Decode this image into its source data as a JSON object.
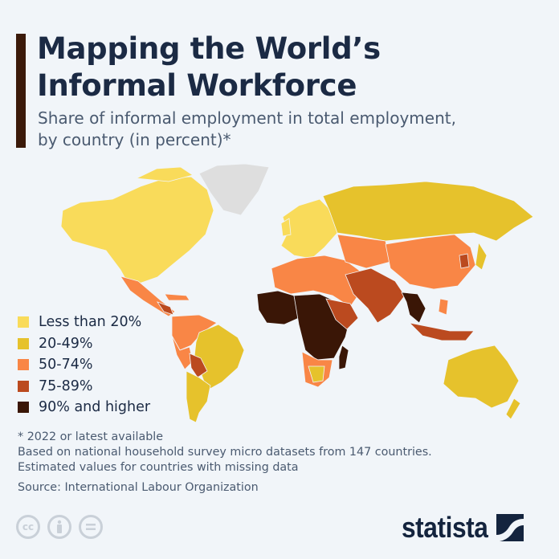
{
  "header": {
    "title_line1": "Mapping the World’s",
    "title_line2": "Informal Workforce",
    "subtitle_line1": "Share of informal employment in total employment,",
    "subtitle_line2": "by country (in percent)*"
  },
  "legend": [
    {
      "label": "Less than 20%",
      "color": "#f9db5a"
    },
    {
      "label": "20-49%",
      "color": "#e6c22c"
    },
    {
      "label": "50-74%",
      "color": "#f98646"
    },
    {
      "label": "75-89%",
      "color": "#bb4a1f"
    },
    {
      "label": "90% and higher",
      "color": "#3a1606"
    }
  ],
  "no_data_color": "#dedede",
  "notes": {
    "line1": "* 2022 or latest available",
    "line2": "Based on national household survey micro datasets from 147 countries.",
    "line3": "Estimated values for countries with missing data"
  },
  "source": "Source: International Labour Organization",
  "license_icons": [
    "creative-commons-icon",
    "attribution-icon",
    "no-derivatives-icon"
  ],
  "brand": {
    "name": "statista"
  }
}
